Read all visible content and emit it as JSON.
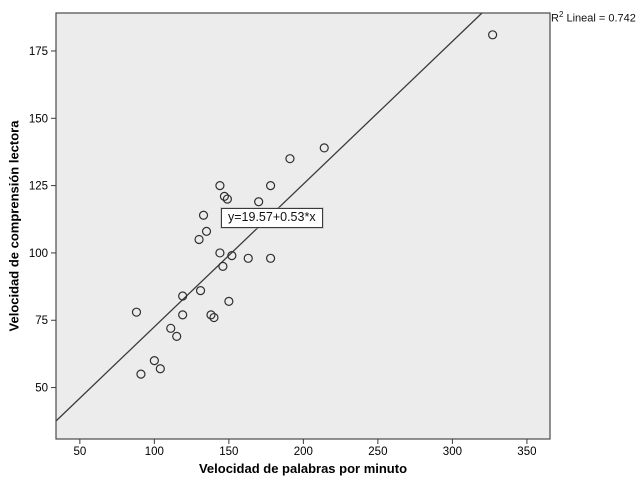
{
  "chart_data": {
    "type": "scatter",
    "title": "",
    "xlabel": "Velocidad de palabras por minuto",
    "ylabel": "Velocidad de comprensión lectora",
    "xlim": [
      34,
      365.5
    ],
    "ylim": [
      30.9,
      189.1
    ],
    "xticks": [
      50,
      100,
      150,
      200,
      250,
      300,
      350
    ],
    "yticks": [
      50,
      75,
      100,
      125,
      150,
      175
    ],
    "grid": false,
    "legend": "none",
    "marker": "open-circle",
    "points": [
      [
        88,
        78
      ],
      [
        91,
        55
      ],
      [
        100,
        60
      ],
      [
        104,
        57
      ],
      [
        111,
        72
      ],
      [
        115,
        69
      ],
      [
        119,
        77
      ],
      [
        119,
        84
      ],
      [
        130,
        105
      ],
      [
        131,
        86
      ],
      [
        133,
        114
      ],
      [
        135,
        108
      ],
      [
        138,
        77
      ],
      [
        140,
        76
      ],
      [
        144,
        100
      ],
      [
        144,
        125
      ],
      [
        146,
        95
      ],
      [
        147,
        121
      ],
      [
        149,
        120
      ],
      [
        150,
        82
      ],
      [
        152,
        99
      ],
      [
        163,
        98
      ],
      [
        170,
        119
      ],
      [
        178,
        98
      ],
      [
        178,
        125
      ],
      [
        191,
        135
      ],
      [
        214,
        139
      ],
      [
        327,
        181
      ]
    ],
    "regression": {
      "slope": 0.53,
      "intercept": 19.57,
      "equation_label": "y=19.57+0.53*x",
      "r2": 0.742
    },
    "annotation": {
      "r2_base": "R",
      "r2_sup": "2",
      "r2_rest": " Lineal = 0.742"
    },
    "colors": {
      "plot_bg": "#ececec",
      "frame": "#4a4a4a",
      "marker_stroke": "#2f2f2f",
      "regression_line": "#3a3a3a",
      "tick": "#3a3a3a",
      "text": "#000000"
    }
  }
}
